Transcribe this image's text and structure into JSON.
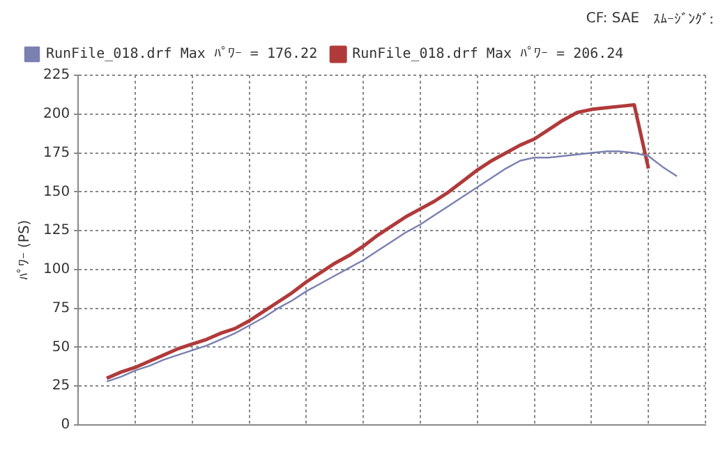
{
  "chart_data": {
    "type": "line",
    "ylabel": "ﾊﾟﾜｰ (PS)",
    "annotations": [
      "CF: SAE",
      "ｽﾑｰｼﾞﾝｸﾞ:"
    ],
    "categories": [
      null,
      null,
      null,
      null,
      null,
      null,
      null,
      null,
      null,
      null,
      null,
      null,
      null,
      null,
      null,
      null,
      null,
      null,
      null,
      null,
      null,
      null,
      null,
      null,
      null,
      null,
      null,
      null,
      null,
      null,
      null,
      null,
      null,
      null,
      null,
      null,
      null,
      null,
      null,
      null,
      null,
      null,
      null,
      null,
      null
    ],
    "series": [
      {
        "name": "RunFile_018.drf Max ﾊﾟﾜｰ = 176.22",
        "color": "#7a80b0",
        "values": [
          null,
          null,
          28,
          31,
          35,
          38,
          42,
          45,
          48,
          51,
          55,
          59,
          64,
          69,
          75,
          80,
          86,
          91,
          96,
          101,
          106,
          112,
          118,
          124,
          129,
          135,
          141,
          147,
          153,
          159,
          165,
          170,
          172,
          172,
          173,
          174,
          175,
          176,
          176,
          175,
          173,
          166,
          160,
          null,
          null
        ]
      },
      {
        "name": "RunFile_018.drf Max ﾊﾟﾜｰ = 206.24",
        "color": "#b03a3a",
        "values": [
          null,
          null,
          30,
          34,
          37,
          41,
          45,
          49,
          52,
          55,
          59,
          62,
          67,
          73,
          79,
          85,
          92,
          98,
          104,
          109,
          115,
          122,
          128,
          134,
          139,
          144,
          150,
          157,
          164,
          170,
          175,
          180,
          184,
          190,
          196,
          201,
          203,
          204,
          205,
          206,
          165,
          null,
          null,
          null,
          null
        ]
      }
    ],
    "ylim": [
      0,
      225
    ],
    "yticks": [
      0,
      25,
      50,
      75,
      100,
      125,
      150,
      175,
      200,
      225
    ],
    "grid": true,
    "legend": "top left",
    "tick_labels": "y",
    "marker": "none",
    "line_style": "solid"
  }
}
